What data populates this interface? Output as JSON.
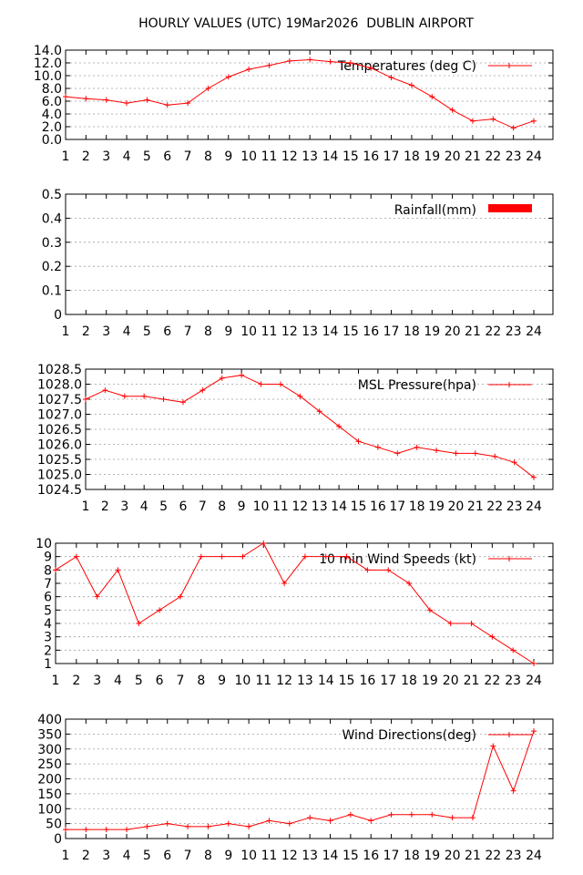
{
  "page": {
    "title": "HOURLY VALUES (UTC) 19Mar2026  DUBLIN AIRPORT"
  },
  "colors": {
    "series": "#ff0000",
    "grid": "#a0a0a0",
    "axis": "#000000"
  },
  "chart_data": [
    {
      "type": "line",
      "legend": "Temperatures (deg C)",
      "legend_placement": "top-right",
      "grid": true,
      "x": [
        1,
        2,
        3,
        4,
        5,
        6,
        7,
        8,
        9,
        10,
        11,
        12,
        13,
        14,
        15,
        16,
        17,
        18,
        19,
        20,
        21,
        22,
        23,
        24
      ],
      "x_ticks": [
        "1",
        "2",
        "3",
        "4",
        "5",
        "6",
        "7",
        "8",
        "9",
        "10",
        "11",
        "12",
        "13",
        "14",
        "15",
        "16",
        "17",
        "18",
        "19",
        "20",
        "21",
        "22",
        "23",
        "24"
      ],
      "ylim": [
        0,
        14
      ],
      "y_ticks": [
        "0.0",
        "2.0",
        "4.0",
        "6.0",
        "8.0",
        "10.0",
        "12.0",
        "14.0"
      ],
      "values": [
        6.7,
        6.4,
        6.2,
        5.7,
        6.2,
        5.4,
        5.7,
        8.0,
        9.8,
        11.0,
        11.6,
        12.3,
        12.5,
        12.2,
        12.0,
        11.2,
        9.7,
        8.5,
        6.7,
        4.6,
        2.9,
        3.2,
        1.8,
        2.9
      ]
    },
    {
      "type": "bar",
      "legend": "Rainfall(mm)",
      "legend_placement": "top-right",
      "grid": true,
      "x": [
        1,
        2,
        3,
        4,
        5,
        6,
        7,
        8,
        9,
        10,
        11,
        12,
        13,
        14,
        15,
        16,
        17,
        18,
        19,
        20,
        21,
        22,
        23,
        24
      ],
      "x_ticks": [
        "1",
        "2",
        "3",
        "4",
        "5",
        "6",
        "7",
        "8",
        "9",
        "10",
        "11",
        "12",
        "13",
        "14",
        "15",
        "16",
        "17",
        "18",
        "19",
        "20",
        "21",
        "22",
        "23",
        "24"
      ],
      "ylim": [
        0,
        0.5
      ],
      "y_ticks": [
        "0",
        "0.1",
        "0.2",
        "0.3",
        "0.4",
        "0.5"
      ],
      "values": [
        0,
        0,
        0,
        0,
        0,
        0,
        0,
        0,
        0,
        0,
        0,
        0,
        0,
        0,
        0,
        0,
        0,
        0,
        0,
        0,
        0,
        0,
        0,
        0
      ]
    },
    {
      "type": "line",
      "legend": "MSL Pressure(hpa)",
      "legend_placement": "top-right",
      "grid": true,
      "x": [
        1,
        2,
        3,
        4,
        5,
        6,
        7,
        8,
        9,
        10,
        11,
        12,
        13,
        14,
        15,
        16,
        17,
        18,
        19,
        20,
        21,
        22,
        23,
        24
      ],
      "x_ticks": [
        "1",
        "2",
        "3",
        "4",
        "5",
        "6",
        "7",
        "8",
        "9",
        "10",
        "11",
        "12",
        "13",
        "14",
        "15",
        "16",
        "17",
        "18",
        "19",
        "20",
        "21",
        "22",
        "23",
        "24"
      ],
      "ylim": [
        1024.5,
        1028.5
      ],
      "y_ticks": [
        "1024.5",
        "1025.0",
        "1025.5",
        "1026.0",
        "1026.5",
        "1027.0",
        "1027.5",
        "1028.0",
        "1028.5"
      ],
      "values": [
        1027.5,
        1027.8,
        1027.6,
        1027.6,
        1027.5,
        1027.4,
        1027.8,
        1028.2,
        1028.3,
        1028.0,
        1028.0,
        1027.6,
        1027.1,
        1026.6,
        1026.1,
        1025.9,
        1025.7,
        1025.9,
        1025.8,
        1025.7,
        1025.7,
        1025.6,
        1025.4,
        1024.9
      ]
    },
    {
      "type": "line",
      "legend": "10 min Wind Speeds (kt)",
      "legend_placement": "top-right",
      "grid": true,
      "x": [
        1,
        2,
        3,
        4,
        5,
        6,
        7,
        8,
        9,
        10,
        11,
        12,
        13,
        14,
        15,
        16,
        17,
        18,
        19,
        20,
        21,
        22,
        23,
        24
      ],
      "x_ticks": [
        "1",
        "2",
        "3",
        "4",
        "5",
        "6",
        "7",
        "8",
        "9",
        "10",
        "11",
        "12",
        "13",
        "14",
        "15",
        "16",
        "17",
        "18",
        "19",
        "20",
        "21",
        "22",
        "23",
        "24"
      ],
      "ylim": [
        1,
        10
      ],
      "y_ticks": [
        "1",
        "2",
        "3",
        "4",
        "5",
        "6",
        "7",
        "8",
        "9",
        "10"
      ],
      "values": [
        8,
        9,
        6,
        8,
        4,
        5,
        6,
        9,
        9,
        9,
        10,
        7,
        9,
        9,
        9,
        8,
        8,
        7,
        5,
        4,
        4,
        3,
        2,
        1
      ]
    },
    {
      "type": "line",
      "legend": "Wind Directions(deg)",
      "legend_placement": "top-right",
      "grid": true,
      "x": [
        1,
        2,
        3,
        4,
        5,
        6,
        7,
        8,
        9,
        10,
        11,
        12,
        13,
        14,
        15,
        16,
        17,
        18,
        19,
        20,
        21,
        22,
        23,
        24
      ],
      "x_ticks": [
        "1",
        "2",
        "3",
        "4",
        "5",
        "6",
        "7",
        "8",
        "9",
        "10",
        "11",
        "12",
        "13",
        "14",
        "15",
        "16",
        "17",
        "18",
        "19",
        "20",
        "21",
        "22",
        "23",
        "24"
      ],
      "ylim": [
        0,
        400
      ],
      "y_ticks": [
        "0",
        "50",
        "100",
        "150",
        "200",
        "250",
        "300",
        "350",
        "400"
      ],
      "values": [
        30,
        30,
        30,
        30,
        40,
        50,
        40,
        40,
        50,
        40,
        60,
        50,
        70,
        60,
        80,
        60,
        80,
        80,
        80,
        70,
        70,
        310,
        160,
        360
      ]
    }
  ]
}
